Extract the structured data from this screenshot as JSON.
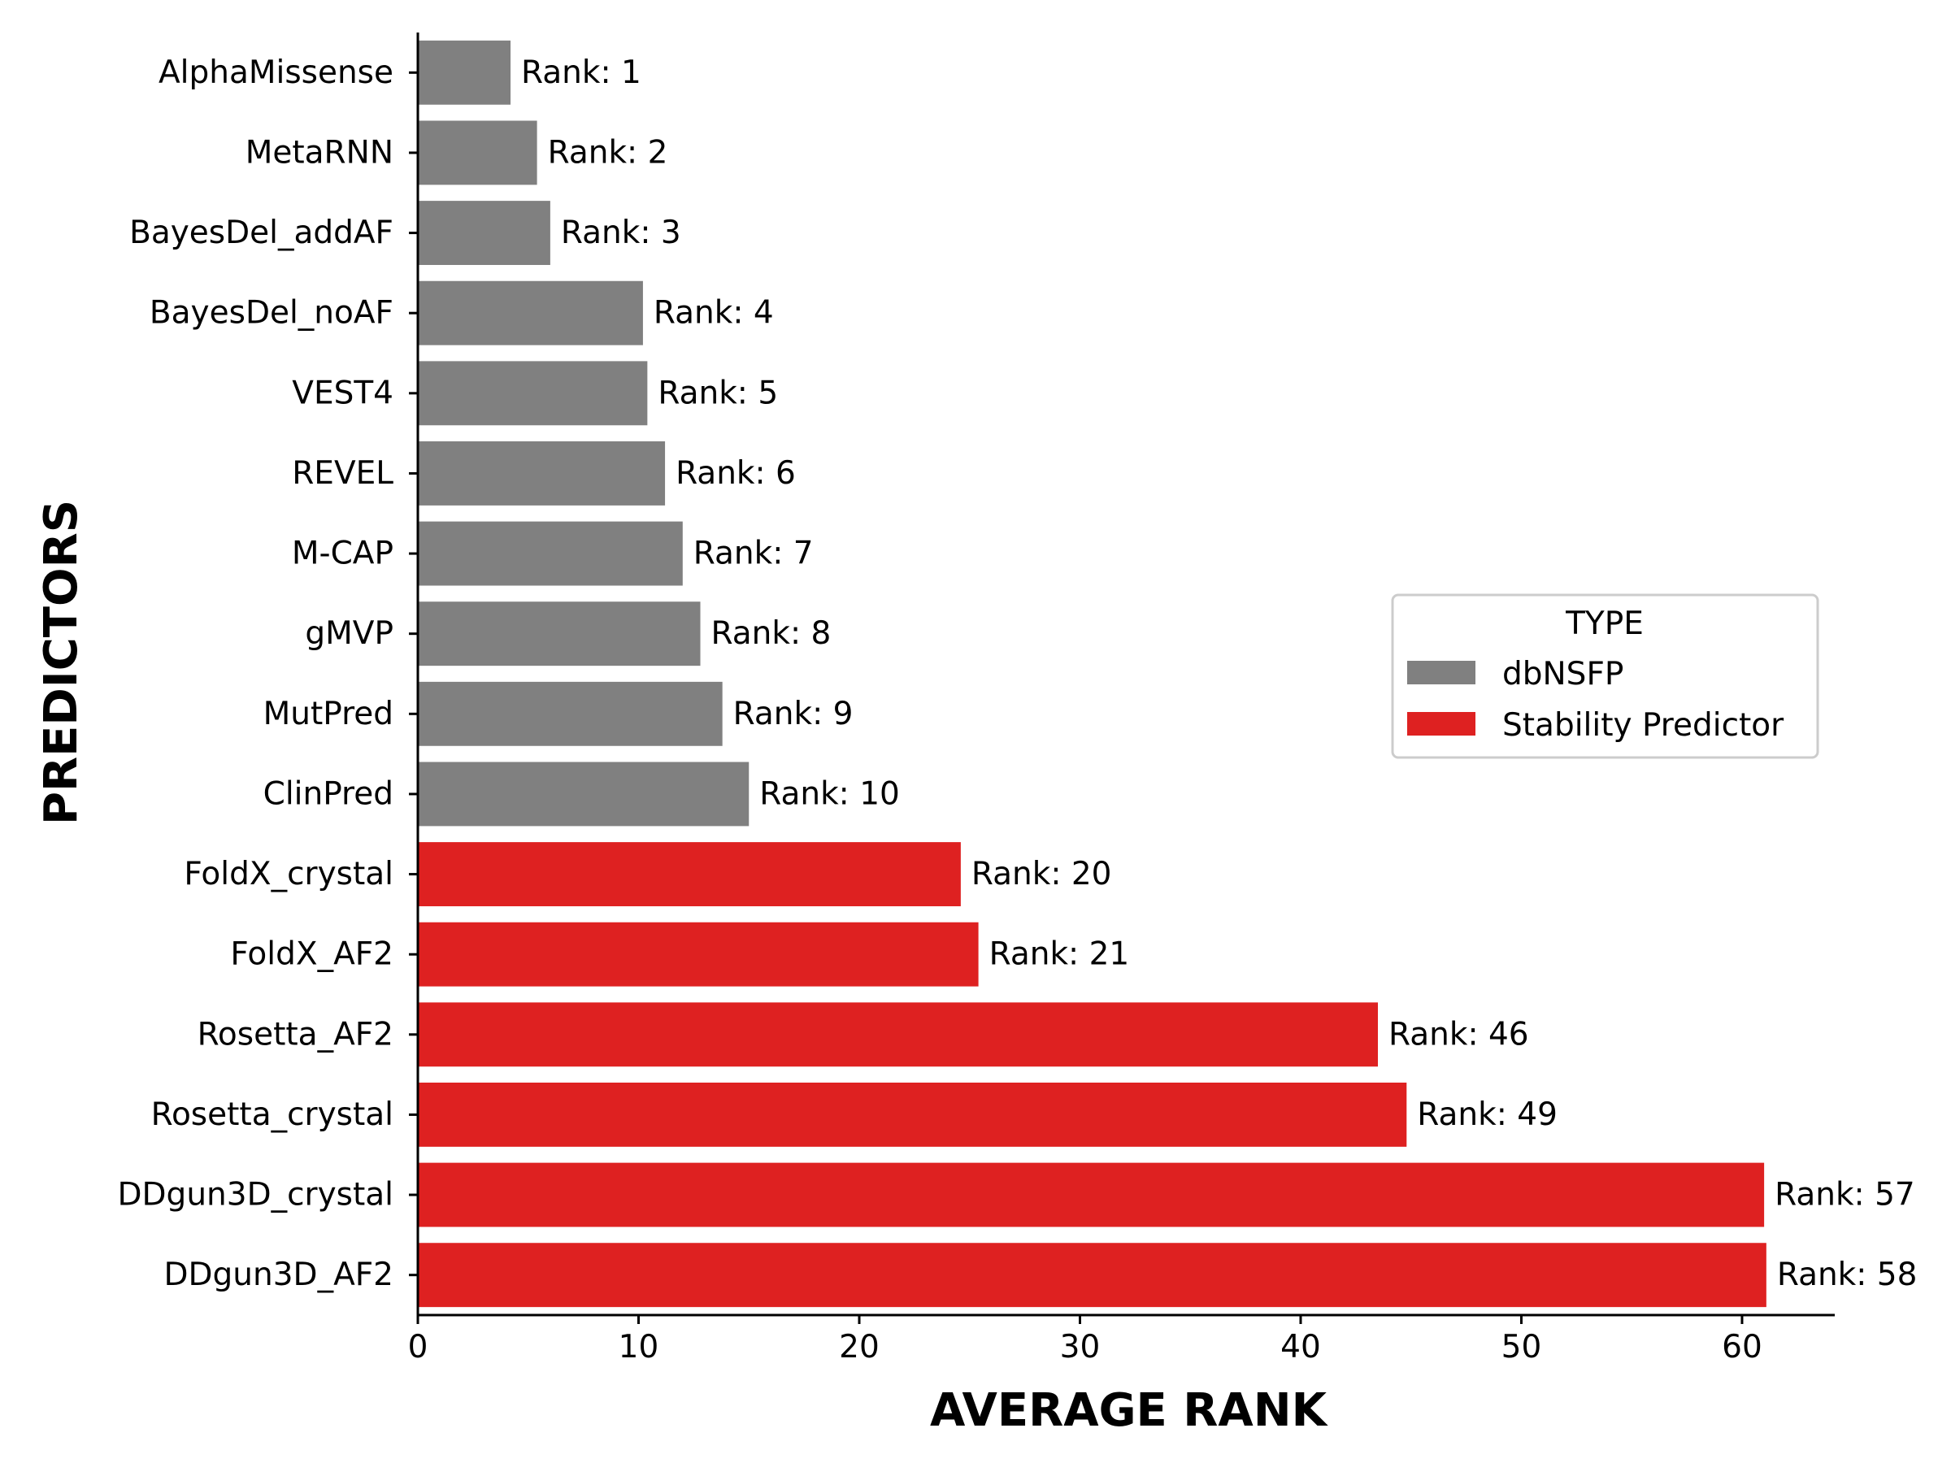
{
  "chart_data": {
    "type": "bar",
    "orientation": "horizontal",
    "xlabel": "AVERAGE RANK",
    "ylabel": "PREDICTORS",
    "xlim": [
      0,
      64.2
    ],
    "xticks": [
      0,
      10,
      20,
      30,
      40,
      50,
      60
    ],
    "grid": false,
    "legend": {
      "title": "TYPE",
      "placement": "center-right",
      "entries": [
        {
          "name": "dbNSFP",
          "color": "#808080"
        },
        {
          "name": "Stability Predictor",
          "color": "#de2121"
        }
      ]
    },
    "categories": [
      "AlphaMissense",
      "MetaRNN",
      "BayesDel_addAF",
      "BayesDel_noAF",
      "VEST4",
      "REVEL",
      "M-CAP",
      "gMVP",
      "MutPred",
      "ClinPred",
      "FoldX_crystal",
      "FoldX_AF2",
      "Rosetta_AF2",
      "Rosetta_crystal",
      "DDgun3D_crystal",
      "DDgun3D_AF2"
    ],
    "values": [
      4.2,
      5.4,
      6.0,
      10.2,
      10.4,
      11.2,
      12.0,
      12.8,
      13.8,
      15.0,
      24.6,
      25.4,
      43.5,
      44.8,
      61.0,
      61.1
    ],
    "types": [
      "dbNSFP",
      "dbNSFP",
      "dbNSFP",
      "dbNSFP",
      "dbNSFP",
      "dbNSFP",
      "dbNSFP",
      "dbNSFP",
      "dbNSFP",
      "dbNSFP",
      "Stability Predictor",
      "Stability Predictor",
      "Stability Predictor",
      "Stability Predictor",
      "Stability Predictor",
      "Stability Predictor"
    ],
    "bar_labels": [
      "Rank: 1",
      "Rank: 2",
      "Rank: 3",
      "Rank: 4",
      "Rank: 5",
      "Rank: 6",
      "Rank: 7",
      "Rank: 8",
      "Rank: 9",
      "Rank: 10",
      "Rank: 20",
      "Rank: 21",
      "Rank: 46",
      "Rank: 49",
      "Rank: 57",
      "Rank: 58"
    ]
  }
}
